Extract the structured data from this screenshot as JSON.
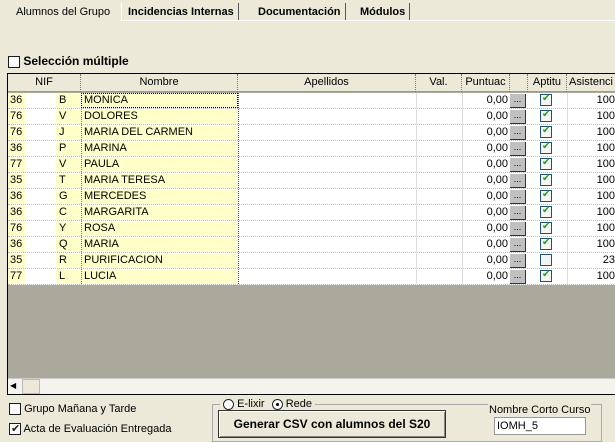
{
  "tabs": [
    "Alumnos del Grupo",
    "Incidencias Internas",
    "Documentación",
    "Módulos"
  ],
  "seleccion_multiple": {
    "label": "Selección múltiple",
    "checked": false
  },
  "columns": [
    "NIF",
    "Nombre",
    "Apellidos",
    "Val.",
    "Puntuac",
    "",
    "Aptitu",
    "Asistenci"
  ],
  "rows": [
    {
      "nif": "36",
      "letra": "B",
      "nombre": "MONICA",
      "punt": "0,00",
      "apto": true,
      "asist": "100"
    },
    {
      "nif": "76",
      "letra": "V",
      "nombre": "DOLORES",
      "punt": "0,00",
      "apto": true,
      "asist": "100"
    },
    {
      "nif": "76",
      "letra": "J",
      "nombre": "MARIA DEL CARMEN",
      "punt": "0,00",
      "apto": true,
      "asist": "100"
    },
    {
      "nif": "36",
      "letra": "P",
      "nombre": "MARINA",
      "punt": "0,00",
      "apto": true,
      "asist": "100"
    },
    {
      "nif": "77",
      "letra": "V",
      "nombre": "PAULA",
      "punt": "0,00",
      "apto": true,
      "asist": "100"
    },
    {
      "nif": "35",
      "letra": "T",
      "nombre": "MARIA TERESA",
      "punt": "0,00",
      "apto": true,
      "asist": "100"
    },
    {
      "nif": "36",
      "letra": "G",
      "nombre": "MERCEDES",
      "punt": "0,00",
      "apto": true,
      "asist": "100"
    },
    {
      "nif": "36",
      "letra": "C",
      "nombre": "MARGARITA",
      "punt": "0,00",
      "apto": true,
      "asist": "100"
    },
    {
      "nif": "76",
      "letra": "Y",
      "nombre": "ROSA",
      "punt": "0,00",
      "apto": true,
      "asist": "100"
    },
    {
      "nif": "36",
      "letra": "Q",
      "nombre": "MARIA",
      "punt": "0,00",
      "apto": true,
      "asist": "100"
    },
    {
      "nif": "35",
      "letra": "R",
      "nombre": "PURIFICACION",
      "punt": "0,00",
      "apto": false,
      "asist": "23"
    },
    {
      "nif": "77",
      "letra": "L",
      "nombre": "LUCIA",
      "punt": "0,00",
      "apto": true,
      "asist": "100"
    }
  ],
  "ellipsis": "...",
  "bottom": {
    "grupo": {
      "label": "Grupo Mañana y Tarde",
      "checked": false
    },
    "acta": {
      "label": "Acta de Evaluación Entregada",
      "checked": true
    },
    "radio_elixir": {
      "label": "E-lixir",
      "selected": false
    },
    "radio_rede": {
      "label": "Rede",
      "selected": true
    },
    "generate_button": "Generar CSV con alumnos del S20",
    "nombre_corto_label": "Nombre Corto Curso",
    "nombre_corto_value": "IOMH_5"
  }
}
